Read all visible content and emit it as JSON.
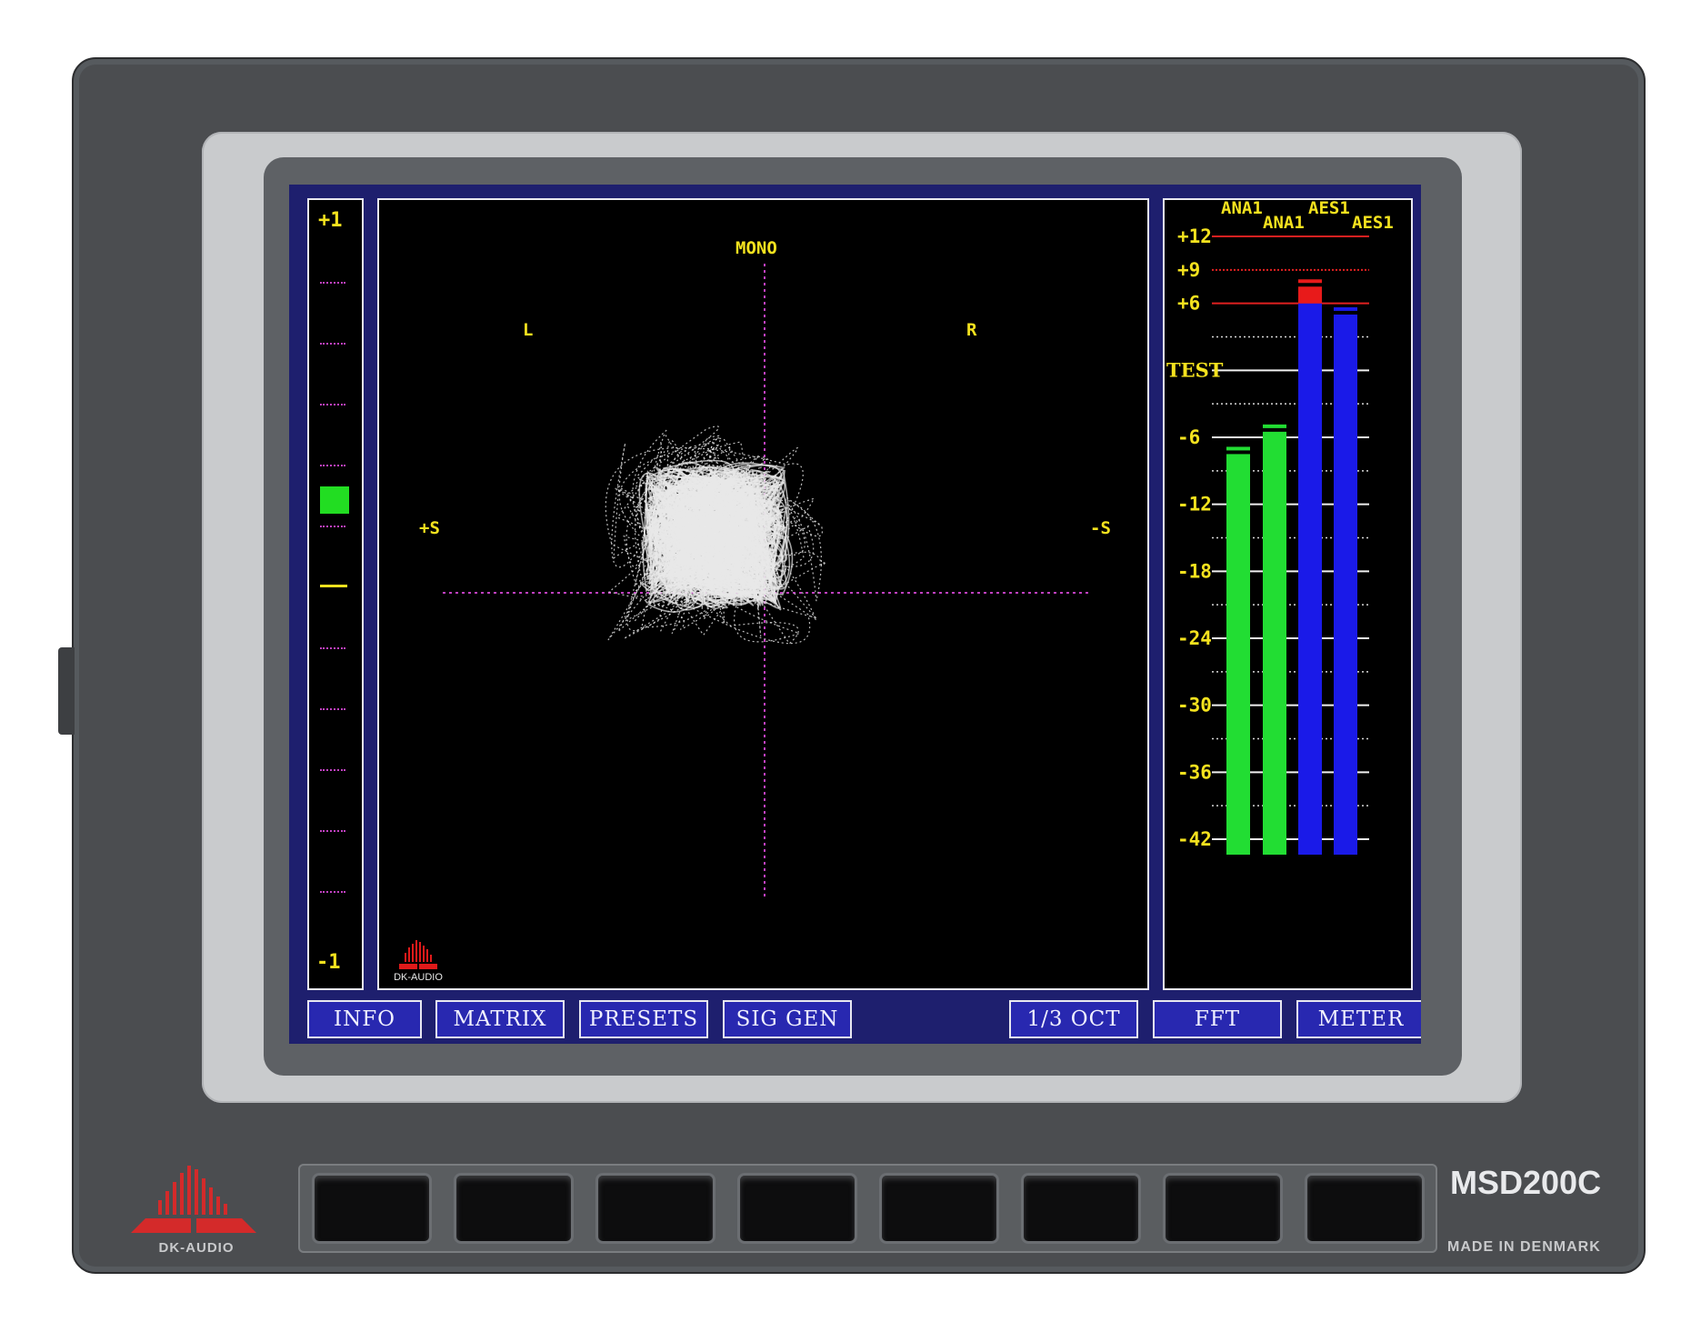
{
  "device": {
    "model": "MSD200C",
    "made_in": "MADE IN DENMARK",
    "brand": "DK-AUDIO",
    "hardware_buttons": 8
  },
  "correlation_meter": {
    "top_label": "+1",
    "bottom_label": "-1",
    "indicator_value": 0.3,
    "indicator_color": "#22dd22"
  },
  "goniometer": {
    "label_mono": "MONO",
    "label_left": "L",
    "label_right": "R",
    "label_plus_s": "+S",
    "label_minus_s": "-S",
    "logo_text": "DK-AUDIO",
    "trace_color": "#e8e8e8",
    "axis_color": "#c040c0",
    "label_color": "#f4e21e"
  },
  "level_meter": {
    "header_row1": [
      "ANA1",
      "AES1"
    ],
    "header_row2": [
      "ANA1",
      "AES1"
    ],
    "scale_labels": [
      "+12",
      "+9",
      "+6",
      "TEST",
      "-6",
      "-12",
      "-18",
      "-24",
      "-30",
      "-36",
      "-42"
    ],
    "bars": [
      {
        "name": "ANA1 L",
        "value": -7.5,
        "color": "#22dd33"
      },
      {
        "name": "ANA1 R",
        "value": -5.5,
        "color": "#22dd33"
      },
      {
        "name": "AES1 L",
        "value": 7.5,
        "color": "#1a1ae8",
        "over_color": "#e81a1a"
      },
      {
        "name": "AES1 R",
        "value": 5.0,
        "color": "#1a1ae8"
      }
    ]
  },
  "softkeys": [
    "INFO",
    "MATRIX",
    "PRESETS",
    "SIG GEN",
    "1/3 OCT",
    "FFT",
    "METER"
  ]
}
